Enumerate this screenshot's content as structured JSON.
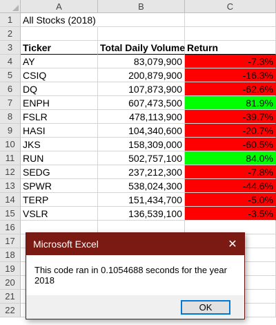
{
  "columns": [
    "A",
    "B",
    "C"
  ],
  "row_numbers": [
    "1",
    "2",
    "3",
    "4",
    "5",
    "6",
    "7",
    "8",
    "9",
    "10",
    "11",
    "12",
    "13",
    "14",
    "15",
    "16",
    "17",
    "18",
    "19",
    "20",
    "21",
    "22"
  ],
  "sheet": {
    "title": "All Stocks (2018)",
    "headers": {
      "ticker": "Ticker",
      "volume": "Total Daily Volume",
      "return": "Return"
    },
    "rows": [
      {
        "ticker": "AY",
        "volume": "83,079,900",
        "return": "-7.3%",
        "status": "negative"
      },
      {
        "ticker": "CSIQ",
        "volume": "200,879,900",
        "return": "-16.3%",
        "status": "negative"
      },
      {
        "ticker": "DQ",
        "volume": "107,873,900",
        "return": "-62.6%",
        "status": "negative"
      },
      {
        "ticker": "ENPH",
        "volume": "607,473,500",
        "return": "81.9%",
        "status": "positive"
      },
      {
        "ticker": "FSLR",
        "volume": "478,113,900",
        "return": "-39.7%",
        "status": "negative"
      },
      {
        "ticker": "HASI",
        "volume": "104,340,600",
        "return": "-20.7%",
        "status": "negative"
      },
      {
        "ticker": "JKS",
        "volume": "158,309,000",
        "return": "-60.5%",
        "status": "negative"
      },
      {
        "ticker": "RUN",
        "volume": "502,757,100",
        "return": "84.0%",
        "status": "positive"
      },
      {
        "ticker": "SEDG",
        "volume": "237,212,300",
        "return": "-7.8%",
        "status": "negative"
      },
      {
        "ticker": "SPWR",
        "volume": "538,024,300",
        "return": "-44.6%",
        "status": "negative"
      },
      {
        "ticker": "TERP",
        "volume": "151,434,700",
        "return": "-5.0%",
        "status": "negative"
      },
      {
        "ticker": "VSLR",
        "volume": "136,539,100",
        "return": "-3.5%",
        "status": "negative"
      }
    ]
  },
  "colors": {
    "negative": "#ff0000",
    "positive": "#00ff00",
    "dialog_titlebar": "#7a1a12"
  },
  "dialog": {
    "title": "Microsoft Excel",
    "close_icon": "close-icon",
    "close_glyph": "✕",
    "message": "This code ran in 0.1054688 seconds for the year 2018",
    "ok_label": "OK"
  }
}
